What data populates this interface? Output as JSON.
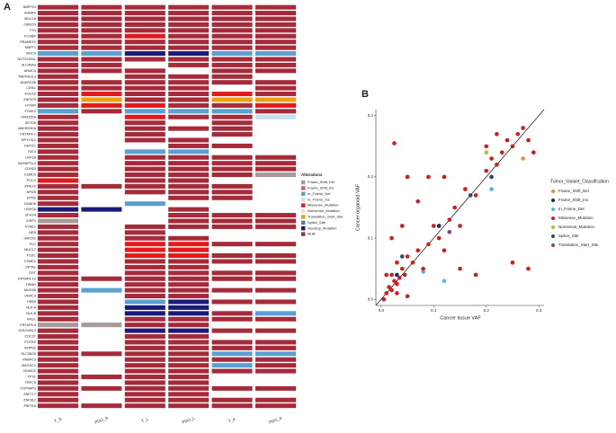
{
  "chart_data": [
    {
      "type": "oncoprint",
      "panel_label": "A",
      "legend_title": "Alterations",
      "legend": [
        {
          "name": "Frame_Shift_Del",
          "color": "#a89b9b"
        },
        {
          "name": "Frame_Shift_Ins",
          "color": "#e8506a"
        },
        {
          "name": "In_Frame_Del",
          "color": "#5aa0d0"
        },
        {
          "name": "In_Frame_Ins",
          "color": "#c7dff0"
        },
        {
          "name": "Missense_Mutation",
          "color": "#e31a1c"
        },
        {
          "name": "Nonsense_Mutation",
          "color": "#f7dcd0"
        },
        {
          "name": "Translation_Start_Site",
          "color": "#f39c12"
        },
        {
          "name": "Splice_Site",
          "color": "#4682b4"
        },
        {
          "name": "Nonstop_Mutation",
          "color": "#1a1a7a"
        },
        {
          "name": "Multi",
          "color": "#a52a3a"
        }
      ],
      "samples": [
        "T_S",
        "PDO_S",
        "T_L",
        "PDO_L",
        "T_K",
        "PDO_K"
      ],
      "genes": [
        "NBPF10",
        "AHNAK",
        "MUC16",
        "OBSCN",
        "TTN",
        "FCGBP",
        "PRAMEF2",
        "NBPF1",
        "MUC4",
        "NOTCH2NL",
        "SLC45A3",
        "ARMC4",
        "TMPRSS13",
        "ANKRD36",
        "CIPA1",
        "EGLN2",
        "ZNF675",
        "HYDIN",
        "FOXK2",
        "FAM155A",
        "SETD5",
        "ANKRD30A",
        "KRTAP4-1",
        "DPY19L2",
        "KMT2C",
        "FAT4",
        "LRP1B",
        "ADAMTSL3",
        "CDH23",
        "CSMD3",
        "PCLO",
        "PREX2",
        "APOB",
        "RYR2",
        "DNAH5",
        "USH2A",
        "ZFHX4",
        "XIRP2",
        "SYNE1",
        "NEB",
        "HMCN1",
        "FLG",
        "MUC17",
        "PLEC",
        "CSMD1",
        "SPTA1",
        "DST",
        "KRTAP4-12",
        "HRNR",
        "MUC5B",
        "OR4C3",
        "PRB3",
        "HLA-A",
        "HLA-B",
        "FRG1",
        "KRTAP5-5",
        "GOLGA6L2",
        "CDC27",
        "POTEE",
        "RHPN2",
        "SLC35G5",
        "PABPC3",
        "MAGEC1",
        "NOMO1",
        "TPTE",
        "TRPC5",
        "CNTNAP3",
        "ZNF717",
        "ZNF812",
        "ZNF318"
      ],
      "matrix": [
        [
          9,
          9,
          9,
          9,
          9,
          9
        ],
        [
          9,
          9,
          9,
          9,
          9,
          9
        ],
        [
          9,
          9,
          9,
          9,
          9,
          9
        ],
        [
          9,
          9,
          9,
          9,
          9,
          9
        ],
        [
          9,
          9,
          9,
          9,
          9,
          9
        ],
        [
          9,
          9,
          4,
          9,
          9,
          9
        ],
        [
          9,
          9,
          9,
          9,
          9,
          9
        ],
        [
          9,
          9,
          9,
          9,
          9,
          9
        ],
        [
          2,
          2,
          8,
          8,
          2,
          2
        ],
        [
          9,
          9,
          9,
          9,
          9,
          9
        ],
        [
          9,
          9,
          null,
          9,
          9,
          9
        ],
        [
          9,
          9,
          9,
          null,
          9,
          9
        ],
        [
          9,
          null,
          9,
          9,
          9,
          null
        ],
        [
          9,
          9,
          9,
          9,
          9,
          9
        ],
        [
          9,
          9,
          9,
          9,
          null,
          9
        ],
        [
          9,
          4,
          9,
          9,
          4,
          9
        ],
        [
          9,
          6,
          9,
          9,
          6,
          6
        ],
        [
          9,
          4,
          4,
          9,
          9,
          4
        ],
        [
          2,
          9,
          2,
          2,
          2,
          9
        ],
        [
          9,
          null,
          4,
          9,
          9,
          3
        ],
        [
          9,
          null,
          9,
          null,
          9,
          null
        ],
        [
          9,
          null,
          9,
          9,
          9,
          null
        ],
        [
          9,
          null,
          9,
          null,
          9,
          null
        ],
        [
          9,
          null,
          9,
          9,
          null,
          null
        ],
        [
          9,
          null,
          null,
          9,
          9,
          null
        ],
        [
          9,
          null,
          2,
          2,
          null,
          null
        ],
        [
          9,
          null,
          9,
          9,
          9,
          9
        ],
        [
          9,
          null,
          9,
          9,
          9,
          9
        ],
        [
          9,
          null,
          9,
          9,
          9,
          9
        ],
        [
          9,
          null,
          9,
          9,
          9,
          0
        ],
        [
          4,
          null,
          9,
          9,
          null,
          null
        ],
        [
          9,
          9,
          9,
          9,
          9,
          null
        ],
        [
          9,
          null,
          9,
          9,
          9,
          null
        ],
        [
          9,
          null,
          null,
          9,
          9,
          null
        ],
        [
          9,
          null,
          2,
          null,
          null,
          null
        ],
        [
          8,
          8,
          null,
          9,
          null,
          null
        ],
        [
          9,
          null,
          null,
          9,
          9,
          9
        ],
        [
          0,
          null,
          null,
          9,
          9,
          9
        ],
        [
          9,
          null,
          9,
          9,
          9,
          9
        ],
        [
          9,
          null,
          9,
          null,
          null,
          null
        ],
        [
          9,
          null,
          9,
          9,
          null,
          null
        ],
        [
          9,
          null,
          4,
          4,
          9,
          9
        ],
        [
          9,
          null,
          4,
          4,
          null,
          null
        ],
        [
          9,
          null,
          4,
          4,
          9,
          9
        ],
        [
          9,
          null,
          9,
          9,
          9,
          9
        ],
        [
          9,
          null,
          9,
          9,
          null,
          null
        ],
        [
          9,
          null,
          9,
          9,
          9,
          9
        ],
        [
          9,
          9,
          9,
          9,
          9,
          9
        ],
        [
          9,
          null,
          9,
          9,
          null,
          null
        ],
        [
          9,
          2,
          9,
          9,
          9,
          9
        ],
        [
          9,
          null,
          9,
          9,
          null,
          null
        ],
        [
          9,
          null,
          2,
          8,
          9,
          9
        ],
        [
          9,
          null,
          8,
          8,
          null,
          null
        ],
        [
          9,
          null,
          8,
          8,
          9,
          2
        ],
        [
          9,
          null,
          9,
          9,
          9,
          9
        ],
        [
          0,
          0,
          9,
          9,
          null,
          null
        ],
        [
          9,
          null,
          8,
          8,
          9,
          9
        ],
        [
          9,
          null,
          9,
          9,
          null,
          null
        ],
        [
          9,
          null,
          9,
          9,
          9,
          9
        ],
        [
          9,
          null,
          9,
          9,
          9,
          9
        ],
        [
          9,
          9,
          9,
          9,
          2,
          2
        ],
        [
          9,
          null,
          9,
          9,
          9,
          9
        ],
        [
          9,
          null,
          9,
          9,
          2,
          9
        ],
        [
          9,
          null,
          9,
          9,
          9,
          9
        ],
        [
          9,
          9,
          9,
          9,
          null,
          null
        ],
        [
          9,
          null,
          9,
          9,
          null,
          null
        ],
        [
          9,
          9,
          9,
          9,
          9,
          9
        ],
        [
          9,
          null,
          9,
          9,
          null,
          null
        ],
        [
          9,
          null,
          9,
          9,
          9,
          9
        ],
        [
          9,
          9,
          9,
          9,
          9,
          9
        ]
      ]
    },
    {
      "type": "scatter",
      "panel_label": "B",
      "x_label": "Cancer tissue VAF",
      "y_label": "Cancer organoid VAF",
      "legend_title": "Tumor_Variant_Classification",
      "xlim": [
        -0.01,
        0.31
      ],
      "ylim": [
        -0.01,
        0.31
      ],
      "xticks": [
        {
          "value": 0,
          "label": "0.0"
        },
        0.1,
        0.2,
        0.3
      ],
      "yticks": [
        {
          "value": 0,
          "label": "0.0"
        },
        0.1,
        0.2,
        0.3
      ],
      "series": [
        {
          "name": "Frame_Shift_Del",
          "color": "#f08a24",
          "x": [
            0.27
          ],
          "values": [
            0.23
          ]
        },
        {
          "name": "Frame_Shift_Ins",
          "color": "#1f2a5a",
          "x": [
            0.11,
            0.03
          ],
          "values": [
            0.12,
            0.04
          ]
        },
        {
          "name": "In_Frame_Del",
          "color": "#5ab4e0",
          "x": [
            0.21,
            0.12,
            0.08
          ],
          "values": [
            0.18,
            0.03,
            0.045
          ]
        },
        {
          "name": "Missense_Mutation",
          "color": "#d7191c",
          "x": [
            0.01,
            0.015,
            0.02,
            0.025,
            0.03,
            0.02,
            0.035,
            0.04,
            0.03,
            0.045,
            0.05,
            0.06,
            0.07,
            0.08,
            0.09,
            0.1,
            0.11,
            0.12,
            0.13,
            0.14,
            0.15,
            0.16,
            0.18,
            0.2,
            0.21,
            0.22,
            0.23,
            0.24,
            0.25,
            0.26,
            0.27,
            0.28,
            0.29,
            0.22,
            0.2,
            0.025,
            0.05,
            0.07,
            0.09,
            0.12,
            0.02,
            0.04,
            0.15,
            0.18,
            0.25,
            0.28,
            0.05,
            0.005,
            0.01,
            0.03
          ],
          "values": [
            0.01,
            0.02,
            0.015,
            0.03,
            0.025,
            0.04,
            0.035,
            0.05,
            0.06,
            0.04,
            0.07,
            0.06,
            0.08,
            0.05,
            0.09,
            0.12,
            0.1,
            0.08,
            0.13,
            0.15,
            0.12,
            0.18,
            0.17,
            0.21,
            0.23,
            0.22,
            0.24,
            0.26,
            0.25,
            0.27,
            0.28,
            0.26,
            0.24,
            0.27,
            0.25,
            0.255,
            0.2,
            0.16,
            0.2,
            0.2,
            0.1,
            0.12,
            0.05,
            0.04,
            0.06,
            0.05,
            0.005,
            0.0,
            0.04,
            0.01
          ]
        },
        {
          "name": "Nonsense_Mutation",
          "color": "#a6c43a",
          "x": [
            0.2
          ],
          "values": [
            0.24
          ]
        },
        {
          "name": "Splice_Site",
          "color": "#1d4f73",
          "x": [
            0.17,
            0.04,
            0.21
          ],
          "values": [
            0.17,
            0.07,
            0.2
          ]
        },
        {
          "name": "Translation_Start_Site",
          "color": "#8e3b9e",
          "x": [
            0.13
          ],
          "values": [
            0.11
          ]
        }
      ]
    }
  ]
}
